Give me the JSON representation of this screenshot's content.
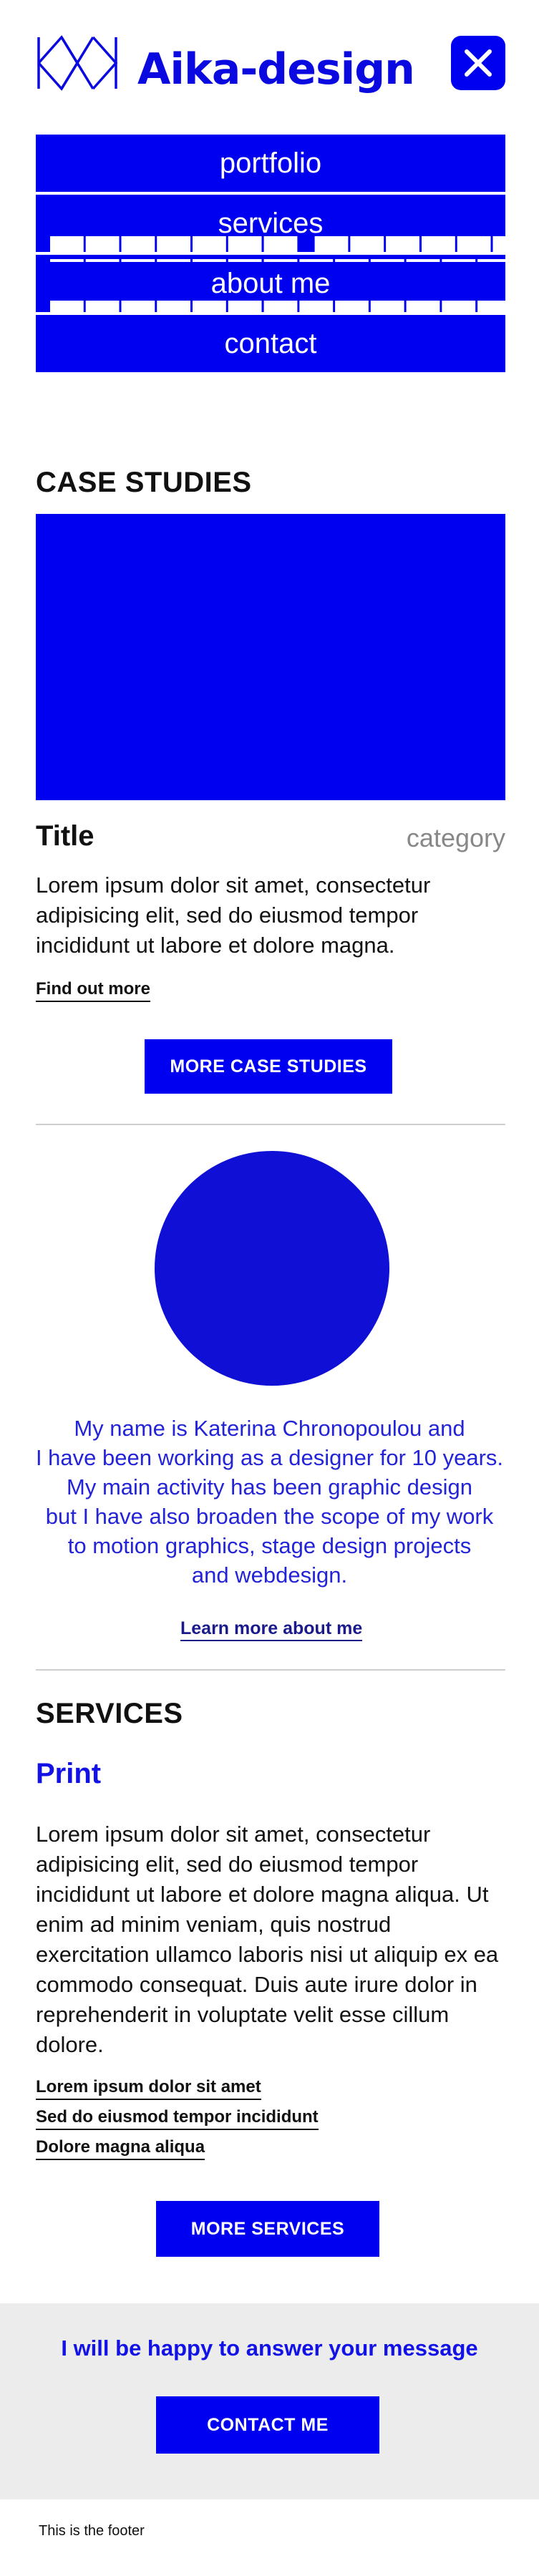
{
  "header": {
    "brand": "Aika-design",
    "accent_color": "#0000f0",
    "logo_icon": "aika-logo-icon",
    "close_icon": "close-icon"
  },
  "nav": {
    "items": [
      {
        "label": "portfolio"
      },
      {
        "label": "services"
      },
      {
        "label": "about me"
      },
      {
        "label": "contact"
      }
    ]
  },
  "case_studies": {
    "heading": "CASE STUDIES",
    "item": {
      "title": "Title",
      "category": "category",
      "description": "Lorem ipsum dolor sit amet, consectetur adipisicing elit, sed do eiusmod tempor incididunt ut labore et dolore magna.",
      "link": "Find out more"
    },
    "more_button": "MORE CASE STUDIES"
  },
  "about": {
    "lines": [
      "My name is Katerina Chronopoulou and",
      "I have been working as a designer for 10 years.",
      "My main activity has been graphic design",
      "but I have also broaden the scope of my work",
      "to motion graphics, stage design projects",
      "and webdesign."
    ],
    "link": "Learn more about me"
  },
  "services": {
    "heading": "SERVICES",
    "subheading": "Print",
    "description": "Lorem ipsum dolor sit amet, consectetur adipisicing elit, sed do eiusmod tempor incididunt ut labore et dolore magna aliqua. Ut enim ad minim veniam, quis nostrud exercitation ullamco laboris nisi ut aliquip ex ea commodo consequat. Duis aute irure dolor in reprehenderit in voluptate velit esse cillum dolore.",
    "links": [
      {
        "label": "Lorem ipsum dolor sit amet"
      },
      {
        "label": "Sed do eiusmod tempor incididunt"
      },
      {
        "label": "Dolore magna aliqua"
      }
    ],
    "more_button": "MORE SERVICES"
  },
  "contact": {
    "text": "I will be happy to answer your message",
    "button": "CONTACT ME"
  },
  "footer": {
    "text": "This is the footer"
  }
}
